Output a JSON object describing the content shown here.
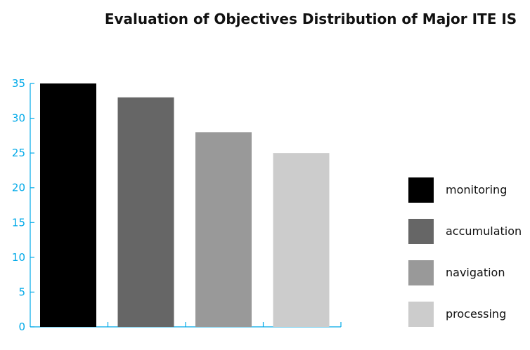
{
  "chart_data": {
    "type": "bar",
    "title": "Evaluation of Objectives Distribution of Major ITE IS",
    "xlabel": "",
    "ylabel": "",
    "categories": [
      "monitoring",
      "accumulation",
      "navigation",
      "processing"
    ],
    "values": [
      35,
      33,
      28,
      25
    ],
    "colors": [
      "#000000",
      "#666666",
      "#999999",
      "#cccccc"
    ],
    "axis_color": "#00a9e8",
    "ylim": [
      0,
      35
    ],
    "yticks": [
      0,
      5,
      10,
      15,
      20,
      25,
      30,
      35
    ],
    "grid": false,
    "legend": {
      "position": "right",
      "entries": [
        "monitoring",
        "accumulation",
        "navigation",
        "processing"
      ]
    }
  }
}
